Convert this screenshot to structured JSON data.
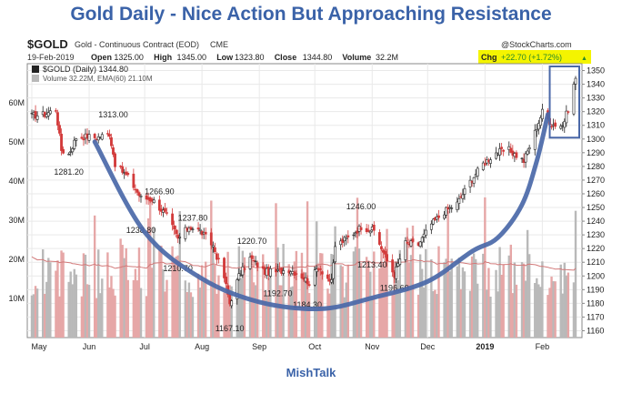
{
  "headline": "Gold Daily - Nice Action But Approaching Resistance",
  "footer": "MishTalk",
  "header": {
    "symbol": "$GOLD",
    "description": "Gold - Continuous Contract (EOD)",
    "exchange": "CME",
    "brand": "@StockCharts.com",
    "date": "19-Feb-2019",
    "quote": [
      {
        "label": "Open",
        "value": "1325.00"
      },
      {
        "label": "High",
        "value": "1345.00"
      },
      {
        "label": "Low",
        "value": "1323.80"
      },
      {
        "label": "Close",
        "value": "1344.80"
      },
      {
        "label": "Volume",
        "value": "32.2M"
      }
    ],
    "change_label": "Chg",
    "change_value": "+22.70 (+1.72%)",
    "change_arrow": "▲"
  },
  "legend": {
    "price": "$GOLD (Daily) 1344.80",
    "volume": "Volume 32.22M, EMA(60) 21.10M"
  },
  "colors": {
    "up": "#222222",
    "down": "#d23a3a",
    "volume_up": "#b9b9b9",
    "volume_down": "#e6a7a7",
    "ema": "#d27a7a",
    "overlay": "#4a68a8",
    "highlight": "#f4f400",
    "headline": "#3a62a8"
  },
  "chart_data": {
    "type": "candlestick",
    "price_axis": {
      "side": "right",
      "range": [
        1155,
        1355
      ],
      "ticks": [
        1160,
        1170,
        1180,
        1190,
        1200,
        1210,
        1220,
        1230,
        1240,
        1250,
        1260,
        1270,
        1280,
        1290,
        1300,
        1310,
        1320,
        1330,
        1340,
        1350
      ]
    },
    "volume_axis": {
      "side": "left",
      "range": [
        0,
        70
      ],
      "ticks": [
        "10M",
        "20M",
        "30M",
        "40M",
        "50M",
        "60M"
      ]
    },
    "x_axis": {
      "start": "2018-05-01",
      "end": "2019-02-19",
      "labels": [
        {
          "date": "2018-05-01",
          "label": "May"
        },
        {
          "date": "2018-06-01",
          "label": "Jun"
        },
        {
          "date": "2018-07-01",
          "label": "Jul"
        },
        {
          "date": "2018-08-01",
          "label": "Aug"
        },
        {
          "date": "2018-09-01",
          "label": "Sep"
        },
        {
          "date": "2018-10-01",
          "label": "Oct"
        },
        {
          "date": "2018-11-01",
          "label": "Nov"
        },
        {
          "date": "2018-12-01",
          "label": "Dec"
        },
        {
          "date": "2019-01-01",
          "label": "2019"
        },
        {
          "date": "2019-02-01",
          "label": "Feb"
        }
      ]
    },
    "grid": true,
    "close_path": [
      {
        "date": "2018-05-01",
        "close": 1317
      },
      {
        "date": "2018-05-08",
        "close": 1318
      },
      {
        "date": "2018-05-14",
        "close": 1322
      },
      {
        "date": "2018-05-17",
        "close": 1292
      },
      {
        "date": "2018-05-21",
        "close": 1289
      },
      {
        "date": "2018-05-25",
        "close": 1301
      },
      {
        "date": "2018-05-31",
        "close": 1302
      },
      {
        "date": "2018-06-05",
        "close": 1301
      },
      {
        "date": "2018-06-12",
        "close": 1304
      },
      {
        "date": "2018-06-15",
        "close": 1282
      },
      {
        "date": "2018-06-22",
        "close": 1272
      },
      {
        "date": "2018-06-29",
        "close": 1257
      },
      {
        "date": "2018-07-05",
        "close": 1256
      },
      {
        "date": "2018-07-13",
        "close": 1244
      },
      {
        "date": "2018-07-19",
        "close": 1227
      },
      {
        "date": "2018-07-25",
        "close": 1236
      },
      {
        "date": "2018-07-31",
        "close": 1233
      },
      {
        "date": "2018-08-07",
        "close": 1222
      },
      {
        "date": "2018-08-13",
        "close": 1199
      },
      {
        "date": "2018-08-16",
        "close": 1180
      },
      {
        "date": "2018-08-21",
        "close": 1200
      },
      {
        "date": "2018-08-27",
        "close": 1213
      },
      {
        "date": "2018-09-04",
        "close": 1203
      },
      {
        "date": "2018-09-10",
        "close": 1203
      },
      {
        "date": "2018-09-17",
        "close": 1205
      },
      {
        "date": "2018-09-24",
        "close": 1200
      },
      {
        "date": "2018-09-28",
        "close": 1195
      },
      {
        "date": "2018-10-03",
        "close": 1207
      },
      {
        "date": "2018-10-10",
        "close": 1195
      },
      {
        "date": "2018-10-12",
        "close": 1222
      },
      {
        "date": "2018-10-19",
        "close": 1228
      },
      {
        "date": "2018-10-26",
        "close": 1236
      },
      {
        "date": "2018-11-02",
        "close": 1233
      },
      {
        "date": "2018-11-09",
        "close": 1211
      },
      {
        "date": "2018-11-13",
        "close": 1201
      },
      {
        "date": "2018-11-19",
        "close": 1224
      },
      {
        "date": "2018-11-26",
        "close": 1223
      },
      {
        "date": "2018-12-03",
        "close": 1238
      },
      {
        "date": "2018-12-10",
        "close": 1247
      },
      {
        "date": "2018-12-17",
        "close": 1253
      },
      {
        "date": "2018-12-24",
        "close": 1269
      },
      {
        "date": "2018-12-31",
        "close": 1282
      },
      {
        "date": "2019-01-07",
        "close": 1290
      },
      {
        "date": "2019-01-14",
        "close": 1292
      },
      {
        "date": "2019-01-22",
        "close": 1284
      },
      {
        "date": "2019-01-28",
        "close": 1305
      },
      {
        "date": "2019-02-01",
        "close": 1320
      },
      {
        "date": "2019-02-06",
        "close": 1311
      },
      {
        "date": "2019-02-12",
        "close": 1310
      },
      {
        "date": "2019-02-15",
        "close": 1322
      },
      {
        "date": "2019-02-19",
        "close": 1344.8
      }
    ],
    "annotations": [
      {
        "text": "1313.00",
        "date": "2018-06-14",
        "price": 1313,
        "pos": "above"
      },
      {
        "text": "1281.20",
        "date": "2018-05-21",
        "price": 1281.2,
        "pos": "below"
      },
      {
        "text": "1266.90",
        "date": "2018-07-09",
        "price": 1266.9,
        "pos": "below"
      },
      {
        "text": "1238.80",
        "date": "2018-06-29",
        "price": 1238.8,
        "pos": "below"
      },
      {
        "text": "1237.80",
        "date": "2018-07-27",
        "price": 1237.8,
        "pos": "above"
      },
      {
        "text": "1210.70",
        "date": "2018-07-19",
        "price": 1210.7,
        "pos": "below"
      },
      {
        "text": "1220.70",
        "date": "2018-08-28",
        "price": 1220.7,
        "pos": "above"
      },
      {
        "text": "1192.70",
        "date": "2018-09-11",
        "price": 1192.7,
        "pos": "below"
      },
      {
        "text": "1184.30",
        "date": "2018-09-27",
        "price": 1184.3,
        "pos": "below"
      },
      {
        "text": "1167.10",
        "date": "2018-08-16",
        "price": 1167.1,
        "pos": "below"
      },
      {
        "text": "1246.00",
        "date": "2018-10-26",
        "price": 1246,
        "pos": "above"
      },
      {
        "text": "1213.40",
        "date": "2018-11-01",
        "price": 1213.4,
        "pos": "below"
      },
      {
        "text": "1196.60",
        "date": "2018-11-13",
        "price": 1196.6,
        "pos": "below"
      }
    ],
    "overlay_curve": [
      {
        "date": "2018-06-04",
        "price": 1298
      },
      {
        "date": "2018-07-01",
        "price": 1232
      },
      {
        "date": "2018-08-01",
        "price": 1198
      },
      {
        "date": "2018-09-01",
        "price": 1181
      },
      {
        "date": "2018-10-04",
        "price": 1176
      },
      {
        "date": "2018-11-01",
        "price": 1184
      },
      {
        "date": "2018-12-01",
        "price": 1196
      },
      {
        "date": "2018-12-25",
        "price": 1218
      },
      {
        "date": "2019-01-08",
        "price": 1228
      },
      {
        "date": "2019-01-21",
        "price": 1252
      },
      {
        "date": "2019-01-29",
        "price": 1284
      },
      {
        "date": "2019-02-04",
        "price": 1318
      }
    ],
    "highlight_box": {
      "date_start": "2019-02-05",
      "date_end": "2019-02-19",
      "price_low": 1301,
      "price_high": 1353
    }
  }
}
